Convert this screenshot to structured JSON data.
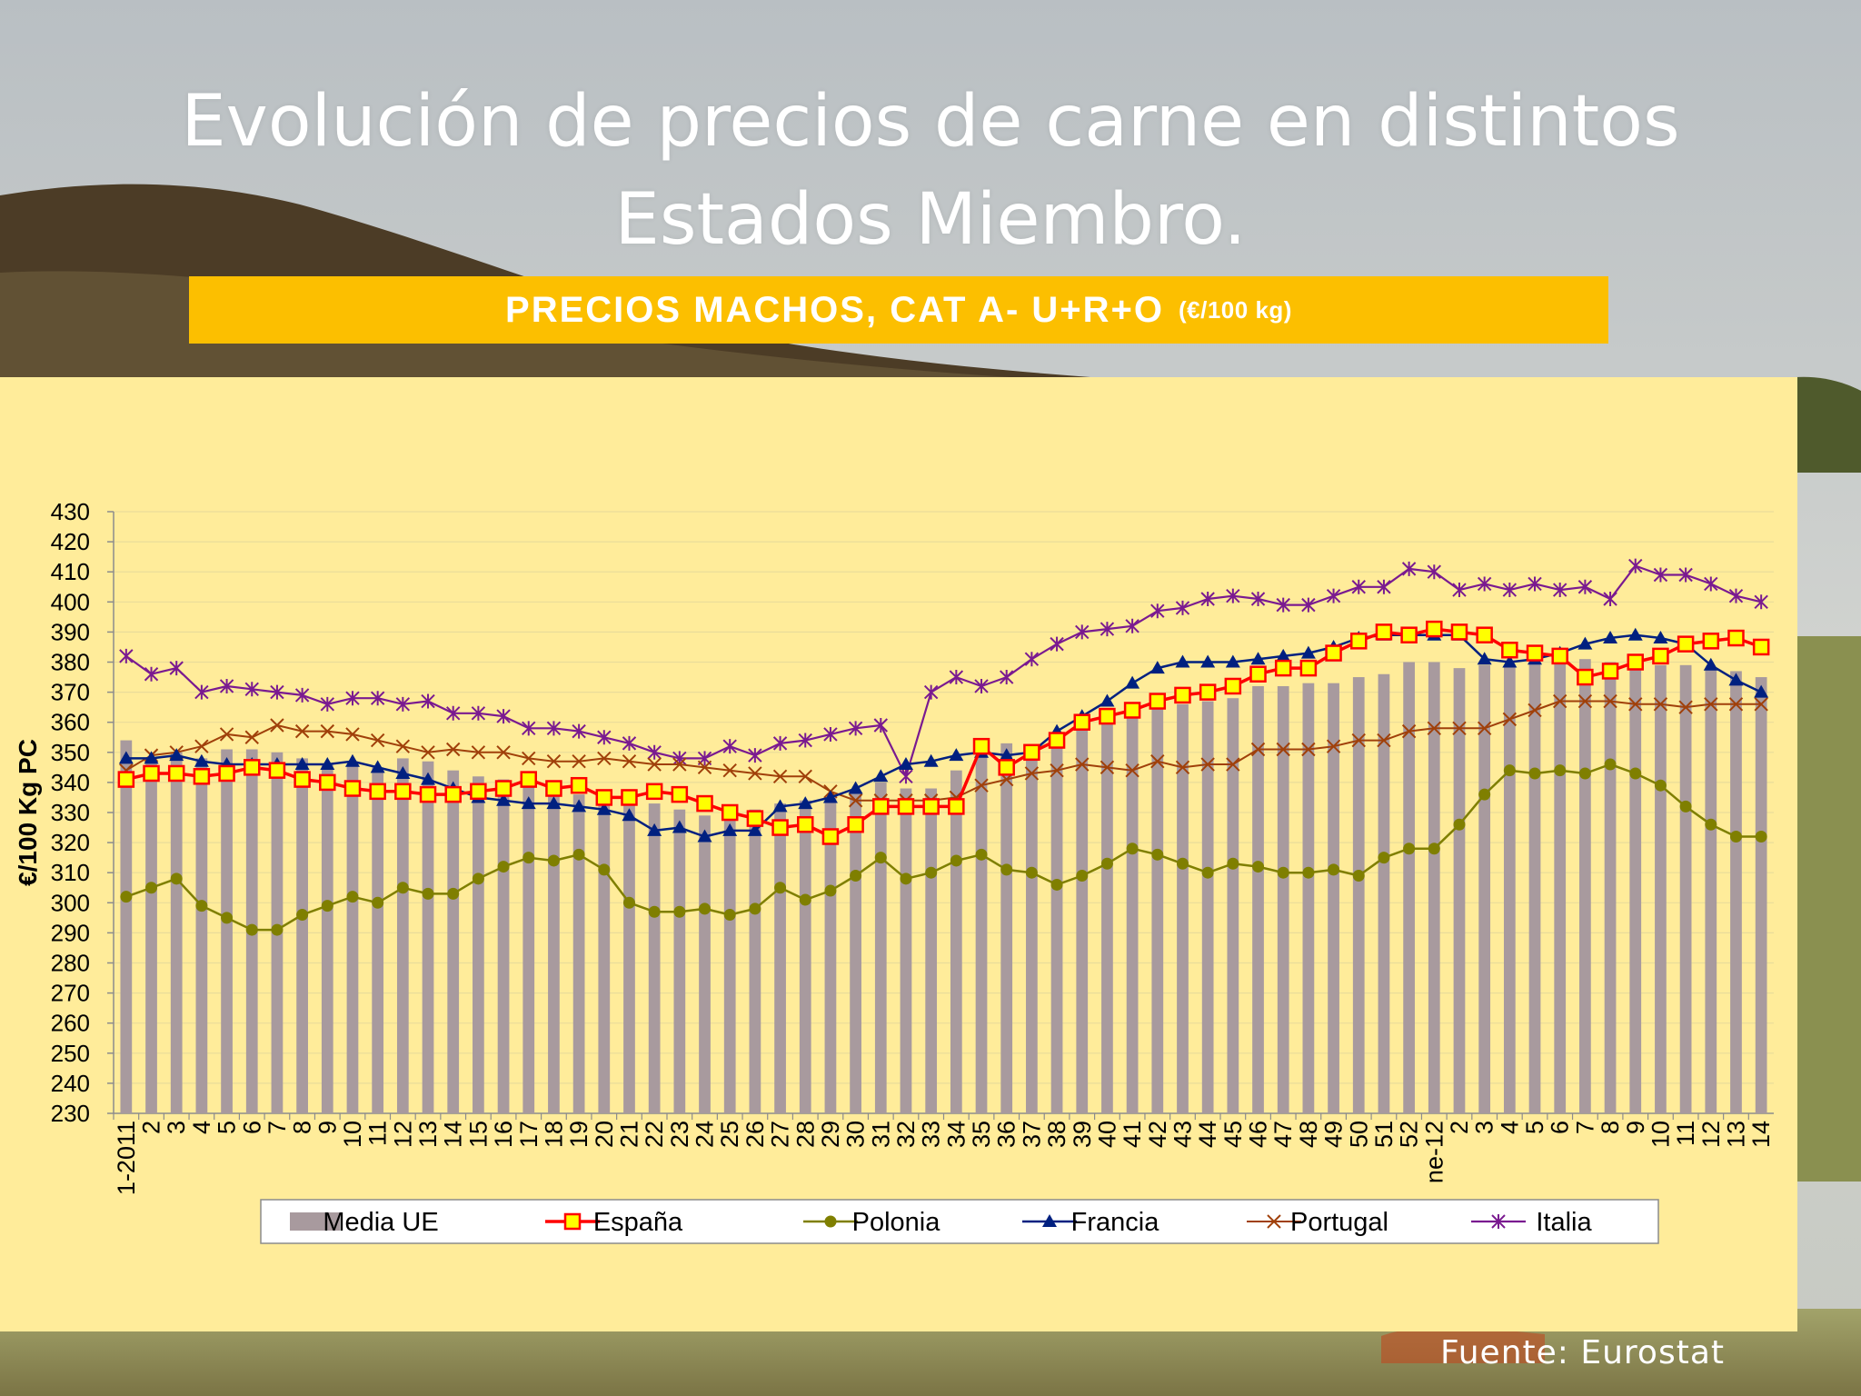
{
  "title_lines": [
    "Evolución de precios de carne en distintos",
    "Estados Miembro."
  ],
  "banner": {
    "main": "PRECIOS MACHOS, CAT A- U+R+O",
    "unit": "(€/100 kg)"
  },
  "source": "Fuente: Eurostat",
  "colors": {
    "banner": "#fcbf00",
    "panel": "#ffec9a",
    "media_ue": "#a89a9e",
    "espana_line": "#ff0000",
    "espana_marker": "#ffff00",
    "polonia": "#7f7f00",
    "francia": "#002080",
    "portugal": "#a0400a",
    "italia": "#7a1a90"
  },
  "chart_data": {
    "type": "bar+line",
    "ylabel": "€/100 Kg PC",
    "xlabel": "",
    "ylim": [
      230,
      430
    ],
    "ytick_step": 10,
    "grid": true,
    "legend_position": "bottom",
    "categories": [
      "1-2011",
      "2",
      "3",
      "4",
      "5",
      "6",
      "7",
      "8",
      "9",
      "10",
      "11",
      "12",
      "13",
      "14",
      "15",
      "16",
      "17",
      "18",
      "19",
      "20",
      "21",
      "22",
      "23",
      "24",
      "25",
      "26",
      "27",
      "28",
      "29",
      "30",
      "31",
      "32",
      "33",
      "34",
      "35",
      "36",
      "37",
      "38",
      "39",
      "40",
      "41",
      "42",
      "43",
      "44",
      "45",
      "46",
      "47",
      "48",
      "49",
      "50",
      "51",
      "52",
      "ne-12",
      "2",
      "3",
      "4",
      "5",
      "6",
      "7",
      "8",
      "9",
      "10",
      "11",
      "12",
      "13",
      "14"
    ],
    "series": [
      {
        "name": "Media UE",
        "type": "bar",
        "values": [
          354,
          348,
          350,
          348,
          351,
          351,
          350,
          348,
          346,
          346,
          345,
          348,
          347,
          344,
          342,
          341,
          340,
          338,
          336,
          335,
          334,
          333,
          331,
          329,
          329,
          331,
          333,
          334,
          335,
          337,
          340,
          338,
          338,
          344,
          350,
          353,
          350,
          354,
          358,
          361,
          363,
          366,
          366,
          367,
          368,
          372,
          372,
          373,
          373,
          375,
          376,
          380,
          380,
          378,
          379,
          379,
          380,
          380,
          381,
          380,
          380,
          379,
          379,
          378,
          377,
          375
        ]
      },
      {
        "name": "España",
        "type": "line",
        "values": [
          341,
          343,
          343,
          342,
          343,
          345,
          344,
          341,
          340,
          338,
          337,
          337,
          336,
          336,
          337,
          338,
          341,
          338,
          339,
          335,
          335,
          337,
          336,
          333,
          330,
          328,
          325,
          326,
          322,
          326,
          332,
          332,
          332,
          332,
          352,
          345,
          350,
          354,
          360,
          362,
          364,
          367,
          369,
          370,
          372,
          376,
          378,
          378,
          383,
          387,
          390,
          389,
          391,
          390,
          389,
          384,
          383,
          382,
          375,
          377,
          380,
          382,
          386,
          387,
          388,
          385
        ]
      },
      {
        "name": "Polonia",
        "type": "line",
        "values": [
          302,
          305,
          308,
          299,
          295,
          291,
          291,
          296,
          299,
          302,
          300,
          305,
          303,
          303,
          308,
          312,
          315,
          314,
          316,
          311,
          300,
          297,
          297,
          298,
          296,
          298,
          305,
          301,
          304,
          309,
          315,
          308,
          310,
          314,
          316,
          311,
          310,
          306,
          309,
          313,
          318,
          316,
          313,
          310,
          313,
          312,
          310,
          310,
          311,
          309,
          315,
          318,
          318,
          326,
          336,
          344,
          343,
          344,
          343,
          346,
          343,
          339,
          332,
          326,
          322,
          322
        ]
      },
      {
        "name": "Francia",
        "type": "line",
        "values": [
          348,
          348,
          349,
          347,
          346,
          346,
          346,
          346,
          346,
          347,
          345,
          343,
          341,
          338,
          335,
          334,
          333,
          333,
          332,
          331,
          329,
          324,
          325,
          322,
          324,
          324,
          332,
          333,
          335,
          338,
          342,
          346,
          347,
          349,
          350,
          349,
          350,
          357,
          362,
          367,
          373,
          378,
          380,
          380,
          380,
          381,
          382,
          383,
          385,
          388,
          389,
          389,
          389,
          389,
          381,
          380,
          381,
          383,
          386,
          388,
          389,
          388,
          386,
          379,
          374,
          370
        ]
      },
      {
        "name": "Portugal",
        "type": "line",
        "values": [
          344,
          349,
          350,
          352,
          356,
          355,
          359,
          357,
          357,
          356,
          354,
          352,
          350,
          351,
          350,
          350,
          348,
          347,
          347,
          348,
          347,
          346,
          346,
          345,
          344,
          343,
          342,
          342,
          337,
          334,
          334,
          334,
          334,
          335,
          339,
          341,
          343,
          344,
          346,
          345,
          344,
          347,
          345,
          346,
          346,
          351,
          351,
          351,
          352,
          354,
          354,
          357,
          358,
          358,
          358,
          361,
          364,
          367,
          367,
          367,
          366,
          366,
          365,
          366,
          366,
          366
        ]
      },
      {
        "name": "Italia",
        "type": "line",
        "values": [
          382,
          376,
          378,
          370,
          372,
          371,
          370,
          369,
          366,
          368,
          368,
          366,
          367,
          363,
          363,
          362,
          358,
          358,
          357,
          355,
          353,
          350,
          348,
          348,
          352,
          349,
          353,
          354,
          356,
          358,
          359,
          342,
          370,
          375,
          372,
          375,
          381,
          386,
          390,
          391,
          392,
          397,
          398,
          401,
          402,
          401,
          399,
          399,
          402,
          405,
          405,
          411,
          410,
          404,
          406,
          404,
          406,
          404,
          405,
          401,
          412,
          409,
          409,
          406,
          402,
          400
        ]
      }
    ],
    "legend": [
      "Media UE",
      "España",
      "Polonia",
      "Francia",
      "Portugal",
      "Italia"
    ]
  }
}
